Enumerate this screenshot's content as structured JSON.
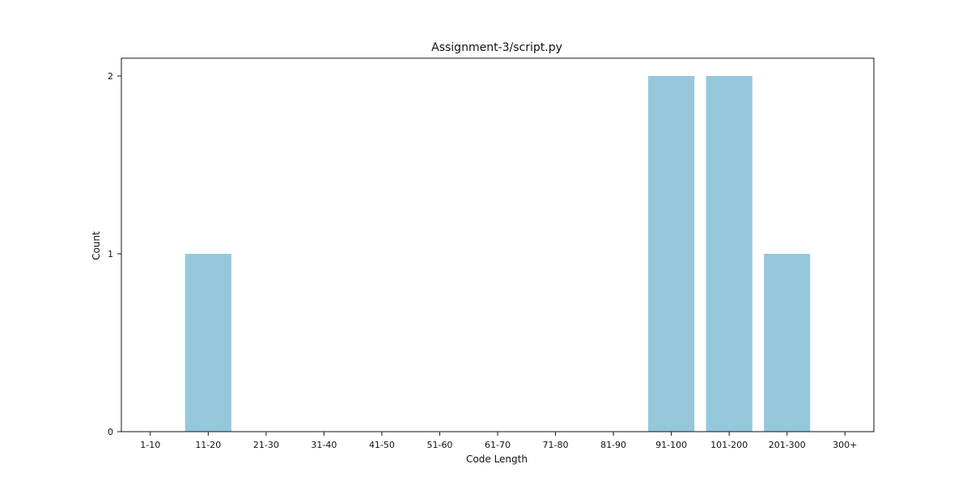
{
  "chart_data": {
    "type": "bar",
    "title": "Assignment-3/script.py",
    "xlabel": "Code Length",
    "ylabel": "Count",
    "categories": [
      "1-10",
      "11-20",
      "21-30",
      "31-40",
      "41-50",
      "51-60",
      "61-70",
      "71-80",
      "81-90",
      "91-100",
      "101-200",
      "201-300",
      "300+"
    ],
    "values": [
      0,
      1,
      0,
      0,
      0,
      0,
      0,
      0,
      0,
      2,
      2,
      1,
      0
    ],
    "ylim": [
      0,
      2.1
    ],
    "yticks": [
      0,
      1,
      2
    ],
    "grid": false,
    "legend": "none",
    "bar_color": "#96c8dc"
  }
}
